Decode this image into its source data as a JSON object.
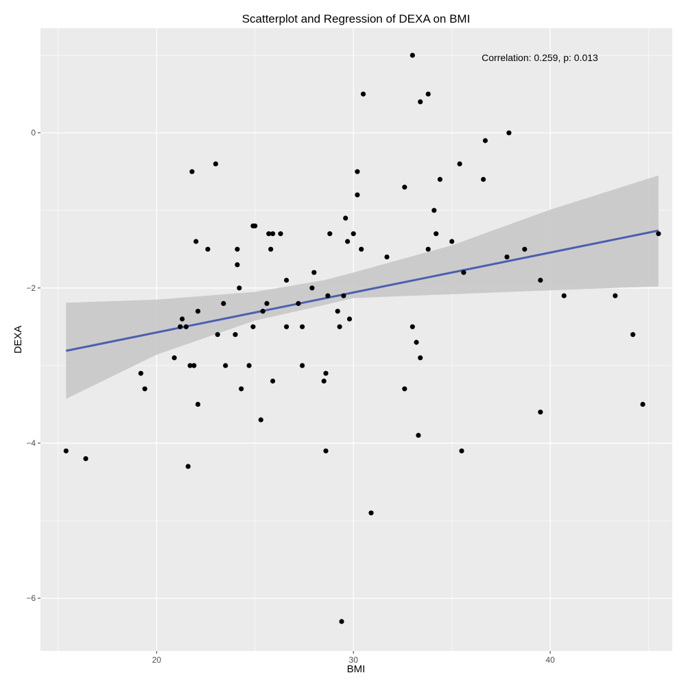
{
  "chart_data": {
    "type": "scatter",
    "title": "Scatterplot and Regression of DEXA on BMI",
    "xlabel": "BMI",
    "ylabel": "DEXA",
    "xlim": [
      14.1,
      46.2
    ],
    "ylim": [
      -6.68,
      1.35
    ],
    "x_ticks": [
      20,
      30,
      40
    ],
    "y_ticks": [
      0,
      -2,
      -4,
      -6
    ],
    "grid": true,
    "annotation": "Correlation: 0.259, p: 0.013",
    "colors": {
      "panel": "#ebebeb",
      "grid": "#ffffff",
      "points": "#000000",
      "line": "#4a5fae",
      "band": "#c6c6c6"
    },
    "regression": {
      "x": [
        15.4,
        45.5
      ],
      "y": [
        -2.81,
        -1.26
      ]
    },
    "confidence_band": {
      "x": [
        15.4,
        20,
        25,
        28.5,
        30,
        35,
        40,
        45.5
      ],
      "lower": [
        -3.43,
        -2.86,
        -2.42,
        -2.22,
        -2.13,
        -2.08,
        -2.03,
        -1.98
      ],
      "upper": [
        -2.19,
        -2.15,
        -2.05,
        -1.9,
        -1.8,
        -1.45,
        -0.99,
        -0.55
      ]
    },
    "points": [
      {
        "x": 15.4,
        "y": -4.1
      },
      {
        "x": 16.4,
        "y": -4.2
      },
      {
        "x": 19.2,
        "y": -3.1
      },
      {
        "x": 19.4,
        "y": -3.3
      },
      {
        "x": 20.9,
        "y": -2.9
      },
      {
        "x": 21.2,
        "y": -2.5
      },
      {
        "x": 21.3,
        "y": -2.4
      },
      {
        "x": 21.5,
        "y": -2.5
      },
      {
        "x": 21.6,
        "y": -4.3
      },
      {
        "x": 21.7,
        "y": -3.0
      },
      {
        "x": 21.8,
        "y": -0.5
      },
      {
        "x": 21.9,
        "y": -3.0
      },
      {
        "x": 22.0,
        "y": -1.4
      },
      {
        "x": 22.1,
        "y": -3.5
      },
      {
        "x": 22.1,
        "y": -2.3
      },
      {
        "x": 22.6,
        "y": -1.5
      },
      {
        "x": 23.0,
        "y": -0.4
      },
      {
        "x": 23.1,
        "y": -2.6
      },
      {
        "x": 23.4,
        "y": -2.2
      },
      {
        "x": 23.5,
        "y": -3.0
      },
      {
        "x": 24.0,
        "y": -2.6
      },
      {
        "x": 24.1,
        "y": -1.5
      },
      {
        "x": 24.1,
        "y": -1.7
      },
      {
        "x": 24.2,
        "y": -2.0
      },
      {
        "x": 24.3,
        "y": -3.3
      },
      {
        "x": 24.7,
        "y": -3.0
      },
      {
        "x": 24.9,
        "y": -2.5
      },
      {
        "x": 24.9,
        "y": -1.2
      },
      {
        "x": 25.0,
        "y": -1.2
      },
      {
        "x": 25.3,
        "y": -3.7
      },
      {
        "x": 25.4,
        "y": -2.3
      },
      {
        "x": 25.6,
        "y": -2.2
      },
      {
        "x": 25.7,
        "y": -1.3
      },
      {
        "x": 25.8,
        "y": -1.5
      },
      {
        "x": 25.9,
        "y": -1.3
      },
      {
        "x": 25.9,
        "y": -3.2
      },
      {
        "x": 26.3,
        "y": -1.3
      },
      {
        "x": 26.6,
        "y": -2.5
      },
      {
        "x": 26.6,
        "y": -1.9
      },
      {
        "x": 27.2,
        "y": -2.2
      },
      {
        "x": 27.4,
        "y": -2.5
      },
      {
        "x": 27.4,
        "y": -3.0
      },
      {
        "x": 27.9,
        "y": -2.0
      },
      {
        "x": 28.0,
        "y": -1.8
      },
      {
        "x": 28.5,
        "y": -3.2
      },
      {
        "x": 28.6,
        "y": -3.1
      },
      {
        "x": 28.6,
        "y": -4.1
      },
      {
        "x": 28.7,
        "y": -2.1
      },
      {
        "x": 28.8,
        "y": -1.3
      },
      {
        "x": 29.2,
        "y": -2.3
      },
      {
        "x": 29.3,
        "y": -2.5
      },
      {
        "x": 29.4,
        "y": -6.3
      },
      {
        "x": 29.5,
        "y": -2.1
      },
      {
        "x": 29.6,
        "y": -1.1
      },
      {
        "x": 29.7,
        "y": -1.4
      },
      {
        "x": 29.8,
        "y": -2.4
      },
      {
        "x": 30.0,
        "y": -1.3
      },
      {
        "x": 30.2,
        "y": -0.8
      },
      {
        "x": 30.2,
        "y": -0.5
      },
      {
        "x": 30.4,
        "y": -1.5
      },
      {
        "x": 30.5,
        "y": 0.5
      },
      {
        "x": 30.9,
        "y": -4.9
      },
      {
        "x": 31.7,
        "y": -1.6
      },
      {
        "x": 32.6,
        "y": -3.3
      },
      {
        "x": 32.6,
        "y": -0.7
      },
      {
        "x": 33.0,
        "y": 1.0
      },
      {
        "x": 33.0,
        "y": -2.5
      },
      {
        "x": 33.2,
        "y": -2.7
      },
      {
        "x": 33.3,
        "y": -3.9
      },
      {
        "x": 33.4,
        "y": 0.4
      },
      {
        "x": 33.4,
        "y": -2.9
      },
      {
        "x": 33.8,
        "y": 0.5
      },
      {
        "x": 33.8,
        "y": -1.5
      },
      {
        "x": 34.1,
        "y": -1.0
      },
      {
        "x": 34.2,
        "y": -1.3
      },
      {
        "x": 34.4,
        "y": -0.6
      },
      {
        "x": 35.0,
        "y": -1.4
      },
      {
        "x": 35.4,
        "y": -0.4
      },
      {
        "x": 35.5,
        "y": -4.1
      },
      {
        "x": 35.6,
        "y": -1.8
      },
      {
        "x": 36.6,
        "y": -0.6
      },
      {
        "x": 36.7,
        "y": -0.1
      },
      {
        "x": 37.8,
        "y": -1.6
      },
      {
        "x": 37.9,
        "y": 0.0
      },
      {
        "x": 38.7,
        "y": -1.5
      },
      {
        "x": 39.5,
        "y": -1.9
      },
      {
        "x": 39.5,
        "y": -3.6
      },
      {
        "x": 40.7,
        "y": -2.1
      },
      {
        "x": 43.3,
        "y": -2.1
      },
      {
        "x": 44.2,
        "y": -2.6
      },
      {
        "x": 44.7,
        "y": -3.5
      },
      {
        "x": 45.5,
        "y": -1.3
      }
    ]
  }
}
